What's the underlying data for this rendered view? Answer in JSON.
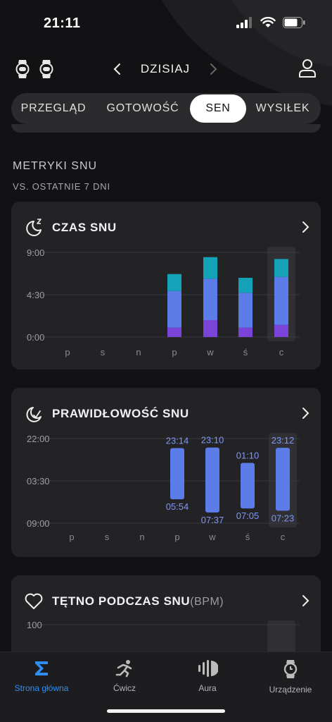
{
  "status_bar": {
    "time": "21:11"
  },
  "header": {
    "date_label": "DZISIAJ"
  },
  "tabs": [
    {
      "label": "PRZEGLĄD",
      "active": false
    },
    {
      "label": "GOTOWOŚĆ",
      "active": false
    },
    {
      "label": "SEN",
      "active": true
    },
    {
      "label": "WYSIŁEK",
      "active": false
    }
  ],
  "section": {
    "title": "METRYKI SNU",
    "subtitle": "VS. OSTATNIE 7 DNI"
  },
  "cards": {
    "sleep_time": {
      "title": "CZAS SNU"
    },
    "sleep_regularity": {
      "title": "PRAWIDŁOWOŚĆ SNU"
    },
    "sleep_hr": {
      "title": "TĘTNO PODCZAS SNU",
      "unit": "(BPM)"
    }
  },
  "chart_data": [
    {
      "type": "bar",
      "title": "CZAS SNU",
      "categories": [
        "p",
        "s",
        "n",
        "p",
        "w",
        "ś",
        "c"
      ],
      "y_ticks": [
        "9:00",
        "4:30",
        "0:00"
      ],
      "ylim": [
        0,
        9
      ],
      "highlighted_index": 6,
      "series": [
        {
          "values": [
            0,
            0,
            0,
            1.0,
            1.8,
            1.0,
            1.3
          ],
          "color": "#7b44d8"
        },
        {
          "values": [
            0,
            0,
            0,
            3.9,
            4.4,
            3.7,
            5.1
          ],
          "color": "#5c7de8"
        },
        {
          "values": [
            0,
            0,
            0,
            1.8,
            2.3,
            1.6,
            1.9
          ],
          "color": "#14a2b8"
        }
      ]
    },
    {
      "type": "bar",
      "title": "PRAWIDŁOWOŚĆ SNU",
      "categories": [
        "p",
        "s",
        "n",
        "p",
        "w",
        "ś",
        "c"
      ],
      "y_ticks": [
        "09:00",
        "03:30",
        "22:00"
      ],
      "highlighted_index": 6,
      "bars": [
        {
          "index": 3,
          "start": "23:14",
          "end": "05:54"
        },
        {
          "index": 4,
          "start": "23:10",
          "end": "07:37"
        },
        {
          "index": 5,
          "start": "01:10",
          "end": "07:05"
        },
        {
          "index": 6,
          "start": "23:12",
          "end": "07:23"
        }
      ],
      "color": "#5c7de8"
    },
    {
      "type": "bar",
      "title": "TĘTNO PODCZAS SNU",
      "y_ticks": [
        "100"
      ]
    }
  ],
  "bottom_nav": [
    {
      "label": "Strona główna",
      "icon": "sigma-icon",
      "active": true
    },
    {
      "label": "Ćwicz",
      "icon": "running-icon",
      "active": false
    },
    {
      "label": "Aura",
      "icon": "aura-icon",
      "active": false
    },
    {
      "label": "Urządzenie",
      "icon": "watch-icon",
      "active": false
    }
  ],
  "colors": {
    "accent": "#2f8df3",
    "deep": "#7b44d8",
    "light": "#5c7de8",
    "rem": "#14a2b8",
    "card": "#232326"
  }
}
